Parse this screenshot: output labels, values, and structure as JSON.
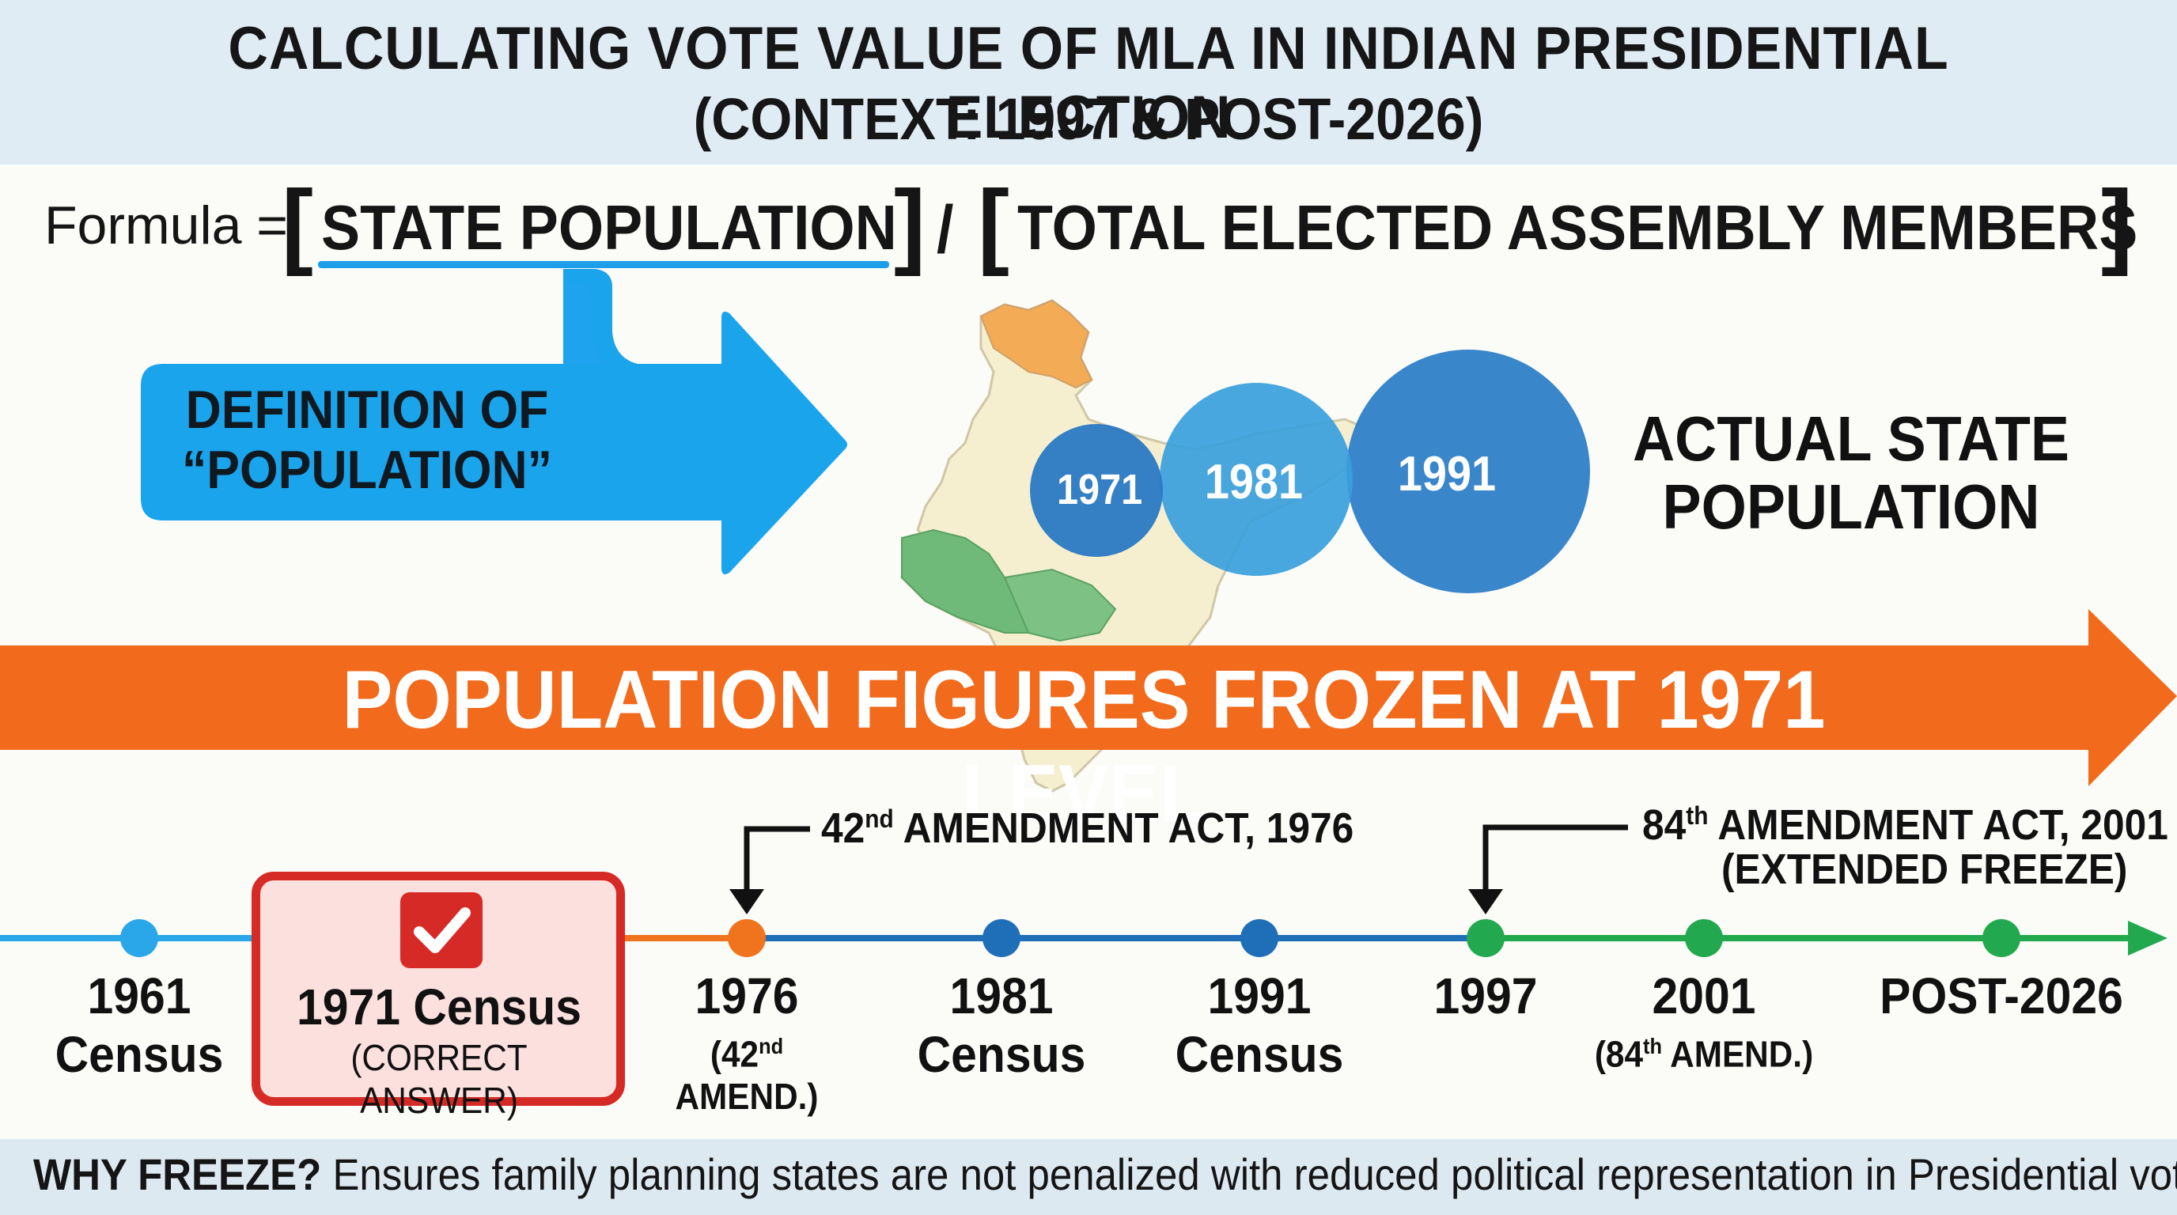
{
  "header": {
    "title": "CALCULATING VOTE VALUE OF MLA IN INDIAN PRESIDENTIAL ELECTION",
    "subtitle": "(CONTEXT: 1997 & POST-2026)"
  },
  "formula": {
    "label": "Formula =",
    "numerator": "STATE POPULATION",
    "divider": "/",
    "denominator": "TOTAL ELECTED ASSEMBLY MEMBERS"
  },
  "definition": {
    "line1": "DEFINITION OF",
    "line2": "“POPULATION”"
  },
  "census_circles": [
    {
      "year": "1971",
      "color": "#2a78c4"
    },
    {
      "year": "1981",
      "color": "#3aa0dc"
    },
    {
      "year": "1991",
      "color": "#3a86cb"
    }
  ],
  "actual_population": {
    "line1": "ACTUAL STATE",
    "line2": "POPULATION"
  },
  "banner": {
    "text": "POPULATION FIGURES FROZEN AT 1971 LEVEL",
    "color": "#f26a1b"
  },
  "annotations": {
    "amend42": {
      "ord": "42",
      "sup": "nd",
      "rest": " AMENDMENT ACT, 1976"
    },
    "amend84": {
      "ord": "84",
      "sup": "th",
      "rest": " AMENDMENT ACT, 2001",
      "line2": "(EXTENDED FREEZE)"
    }
  },
  "timeline": [
    {
      "line1": "1961",
      "line2": "Census"
    },
    {
      "line1": "1971 Census",
      "line2": "(CORRECT ANSWER)"
    },
    {
      "line1": "1976",
      "ord": "(42",
      "sup": "nd",
      "rest": " AMEND.)"
    },
    {
      "line1": "1981",
      "line2": "Census"
    },
    {
      "line1": "1991",
      "line2": "Census"
    },
    {
      "line1": "1997"
    },
    {
      "line1": "2001",
      "ord": "(84",
      "sup": "th",
      "rest": " AMEND.)"
    },
    {
      "line1": "POST-2026"
    }
  ],
  "footer": {
    "bold": "WHY FREEZE?",
    "text": " Ensures family planning states are not penalized with reduced political representation in Presidential votes."
  },
  "colors": {
    "timeline_early": "#2aa7e8",
    "timeline_orange": "#f0731d",
    "timeline_blue": "#1f6fb8",
    "timeline_green": "#22a94f",
    "answer_red": "#d62a26"
  }
}
